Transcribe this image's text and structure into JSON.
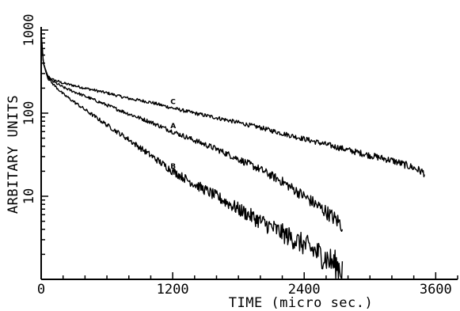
{
  "chart_data": {
    "type": "line",
    "title": "",
    "xlabel": "TIME (micro sec.)",
    "ylabel": "ARBITARY UNITS",
    "x_scale": "linear",
    "y_scale": "log",
    "xlim": [
      0,
      3800
    ],
    "ylim": [
      1,
      1000
    ],
    "x_ticks": [
      {
        "value": 0,
        "label": "0"
      },
      {
        "value": 1200,
        "label": "1200"
      },
      {
        "value": 2400,
        "label": "2400"
      },
      {
        "value": 3600,
        "label": "3600"
      }
    ],
    "y_ticks": [
      {
        "value": 10,
        "label": "10"
      },
      {
        "value": 100,
        "label": "100"
      },
      {
        "value": 1000,
        "label": "1000"
      }
    ],
    "grid": false,
    "series": [
      {
        "name": "C",
        "x": [
          0,
          20,
          60,
          100,
          200,
          400,
          600,
          800,
          1000,
          1200,
          1400,
          1600,
          1800,
          2000,
          2200,
          2400,
          2600,
          2800,
          3000,
          3200,
          3400,
          3500
        ],
        "y": [
          900,
          400,
          280,
          255,
          230,
          200,
          175,
          150,
          135,
          115,
          100,
          88,
          77,
          67,
          57,
          49,
          42,
          36,
          31,
          27,
          22,
          19
        ]
      },
      {
        "name": "A",
        "x": [
          0,
          20,
          60,
          100,
          200,
          400,
          600,
          800,
          1000,
          1200,
          1400,
          1600,
          1800,
          2000,
          2200,
          2400,
          2600,
          2750
        ],
        "y": [
          900,
          400,
          270,
          245,
          205,
          160,
          125,
          98,
          78,
          60,
          47,
          37,
          28,
          21,
          15,
          10,
          6.5,
          4.5
        ]
      },
      {
        "name": "B",
        "x": [
          0,
          20,
          60,
          100,
          200,
          400,
          600,
          800,
          1000,
          1200,
          1400,
          1600,
          1800,
          2000,
          2200,
          2400,
          2600,
          2750
        ],
        "y": [
          900,
          400,
          265,
          230,
          170,
          110,
          72,
          48,
          31,
          20,
          14,
          10,
          7,
          5,
          3.6,
          2.6,
          1.8,
          1.3
        ]
      }
    ]
  }
}
